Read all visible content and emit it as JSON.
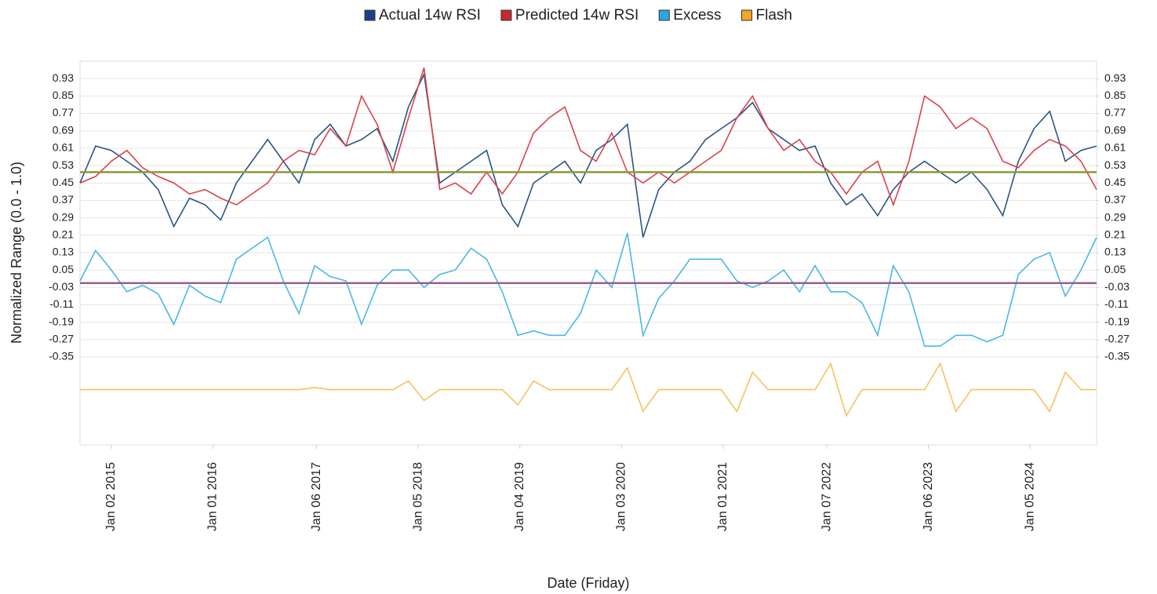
{
  "chart_data": {
    "type": "line",
    "y_label": "Normalized Range (0.0 - 1.0)",
    "x_label": "Date (Friday)",
    "x": [
      "2014-09-12",
      "2014-11-07",
      "2015-01-02",
      "2015-02-27",
      "2015-04-24",
      "2015-06-19",
      "2015-08-14",
      "2015-10-09",
      "2015-12-04",
      "2016-01-29",
      "2016-03-25",
      "2016-05-20",
      "2016-07-15",
      "2016-09-09",
      "2016-11-04",
      "2016-12-30",
      "2017-02-24",
      "2017-04-21",
      "2017-06-16",
      "2017-08-11",
      "2017-10-06",
      "2017-12-01",
      "2018-01-26",
      "2018-03-23",
      "2018-05-18",
      "2018-07-13",
      "2018-09-07",
      "2018-11-02",
      "2018-12-28",
      "2019-02-22",
      "2019-04-19",
      "2019-06-14",
      "2019-08-09",
      "2019-10-04",
      "2019-11-29",
      "2020-01-24",
      "2020-03-20",
      "2020-05-15",
      "2020-07-10",
      "2020-09-04",
      "2020-10-30",
      "2020-12-25",
      "2021-02-19",
      "2021-04-16",
      "2021-06-11",
      "2021-08-06",
      "2021-10-01",
      "2021-11-26",
      "2022-01-21",
      "2022-03-18",
      "2022-05-13",
      "2022-07-08",
      "2022-09-02",
      "2022-10-28",
      "2022-12-23",
      "2023-02-17",
      "2023-04-14",
      "2023-06-09",
      "2023-08-04",
      "2023-09-29",
      "2023-11-24",
      "2024-01-19",
      "2024-03-15",
      "2024-05-10",
      "2024-07-05",
      "2024-08-30"
    ],
    "xlim": [
      "2014-09-12",
      "2024-08-30"
    ],
    "xticks": [
      {
        "value": "2015-01-02",
        "label": "Jan 02 2015"
      },
      {
        "value": "2016-01-01",
        "label": "Jan 01 2016"
      },
      {
        "value": "2017-01-06",
        "label": "Jan 06 2017"
      },
      {
        "value": "2018-01-05",
        "label": "Jan 05 2018"
      },
      {
        "value": "2019-01-04",
        "label": "Jan 04 2019"
      },
      {
        "value": "2020-01-03",
        "label": "Jan 03 2020"
      },
      {
        "value": "2021-01-01",
        "label": "Jan 01 2021"
      },
      {
        "value": "2022-01-07",
        "label": "Jan 07 2022"
      },
      {
        "value": "2023-01-06",
        "label": "Jan 06 2023"
      },
      {
        "value": "2024-01-05",
        "label": "Jan 05 2024"
      }
    ],
    "ylim": [
      -0.754,
      1.01
    ],
    "yticks": [
      0.93,
      0.85,
      0.77,
      0.69,
      0.61,
      0.53,
      0.45,
      0.37,
      0.29,
      0.21,
      0.13,
      0.05,
      -0.03,
      -0.11,
      -0.19,
      -0.27,
      -0.35
    ],
    "y2lim": [
      -0.754,
      1.01
    ],
    "y2ticks": [
      0.93,
      0.85,
      0.77,
      0.69,
      0.61,
      0.53,
      0.45,
      0.37,
      0.29,
      0.21,
      0.13,
      0.05,
      -0.03,
      -0.11,
      -0.19,
      -0.27,
      -0.35
    ],
    "grid": true,
    "legend": "top",
    "reference_lines": [
      {
        "value": 0.5,
        "color": "#8a9a3a"
      },
      {
        "value": -0.01,
        "color": "#946090"
      }
    ],
    "series": [
      {
        "name": "Actual 14w RSI",
        "color": "#1f3d8a",
        "line_color": "#2b5484",
        "values": [
          0.45,
          0.62,
          0.6,
          0.55,
          0.5,
          0.42,
          0.25,
          0.38,
          0.35,
          0.28,
          0.45,
          0.55,
          0.65,
          0.55,
          0.45,
          0.65,
          0.72,
          0.62,
          0.65,
          0.7,
          0.55,
          0.8,
          0.95,
          0.45,
          0.5,
          0.55,
          0.6,
          0.35,
          0.25,
          0.45,
          0.5,
          0.55,
          0.45,
          0.6,
          0.65,
          0.72,
          0.2,
          0.42,
          0.5,
          0.55,
          0.65,
          0.7,
          0.75,
          0.82,
          0.7,
          0.65,
          0.6,
          0.62,
          0.45,
          0.35,
          0.4,
          0.3,
          0.42,
          0.5,
          0.55,
          0.5,
          0.45,
          0.5,
          0.42,
          0.3,
          0.55,
          0.7,
          0.78,
          0.55,
          0.6,
          0.62
        ]
      },
      {
        "name": "Predicted 14w RSI",
        "color": "#c8282d",
        "line_color": "#d9434a",
        "values": [
          0.45,
          0.48,
          0.55,
          0.6,
          0.52,
          0.48,
          0.45,
          0.4,
          0.42,
          0.38,
          0.35,
          0.4,
          0.45,
          0.55,
          0.6,
          0.58,
          0.7,
          0.62,
          0.85,
          0.72,
          0.5,
          0.75,
          0.98,
          0.42,
          0.45,
          0.4,
          0.5,
          0.4,
          0.5,
          0.68,
          0.75,
          0.8,
          0.6,
          0.55,
          0.68,
          0.5,
          0.45,
          0.5,
          0.45,
          0.5,
          0.55,
          0.6,
          0.75,
          0.85,
          0.7,
          0.6,
          0.65,
          0.55,
          0.5,
          0.4,
          0.5,
          0.55,
          0.35,
          0.55,
          0.85,
          0.8,
          0.7,
          0.75,
          0.7,
          0.55,
          0.52,
          0.6,
          0.65,
          0.62,
          0.55,
          0.42
        ]
      },
      {
        "name": "Excess",
        "color": "#2aa7e0",
        "line_color": "#4cb6e8",
        "values": [
          0.0,
          0.14,
          0.05,
          -0.05,
          -0.02,
          -0.06,
          -0.2,
          -0.02,
          -0.07,
          -0.1,
          0.1,
          0.15,
          0.2,
          0.0,
          -0.15,
          0.07,
          0.02,
          0.0,
          -0.2,
          -0.02,
          0.05,
          0.05,
          -0.03,
          0.03,
          0.05,
          0.15,
          0.1,
          -0.05,
          -0.25,
          -0.23,
          -0.25,
          -0.25,
          -0.15,
          0.05,
          -0.03,
          0.22,
          -0.25,
          -0.08,
          0.0,
          0.1,
          0.1,
          0.1,
          0.0,
          -0.03,
          0.0,
          0.05,
          -0.05,
          0.07,
          -0.05,
          -0.05,
          -0.1,
          -0.25,
          0.07,
          -0.05,
          -0.3,
          -0.3,
          -0.25,
          -0.25,
          -0.28,
          -0.25,
          0.03,
          0.1,
          0.13,
          -0.07,
          0.05,
          0.2
        ]
      },
      {
        "name": "Flash",
        "color": "#f5a623",
        "line_color": "#f7c15d",
        "values": [
          -0.5,
          -0.5,
          -0.5,
          -0.5,
          -0.5,
          -0.5,
          -0.5,
          -0.5,
          -0.5,
          -0.5,
          -0.5,
          -0.5,
          -0.5,
          -0.5,
          -0.5,
          -0.49,
          -0.5,
          -0.5,
          -0.5,
          -0.5,
          -0.5,
          -0.46,
          -0.55,
          -0.5,
          -0.5,
          -0.5,
          -0.5,
          -0.5,
          -0.57,
          -0.46,
          -0.5,
          -0.5,
          -0.5,
          -0.5,
          -0.5,
          -0.4,
          -0.6,
          -0.5,
          -0.5,
          -0.5,
          -0.5,
          -0.5,
          -0.6,
          -0.42,
          -0.5,
          -0.5,
          -0.5,
          -0.5,
          -0.38,
          -0.62,
          -0.5,
          -0.5,
          -0.5,
          -0.5,
          -0.5,
          -0.38,
          -0.6,
          -0.5,
          -0.5,
          -0.5,
          -0.5,
          -0.5,
          -0.6,
          -0.42,
          -0.5,
          -0.5
        ]
      }
    ]
  }
}
